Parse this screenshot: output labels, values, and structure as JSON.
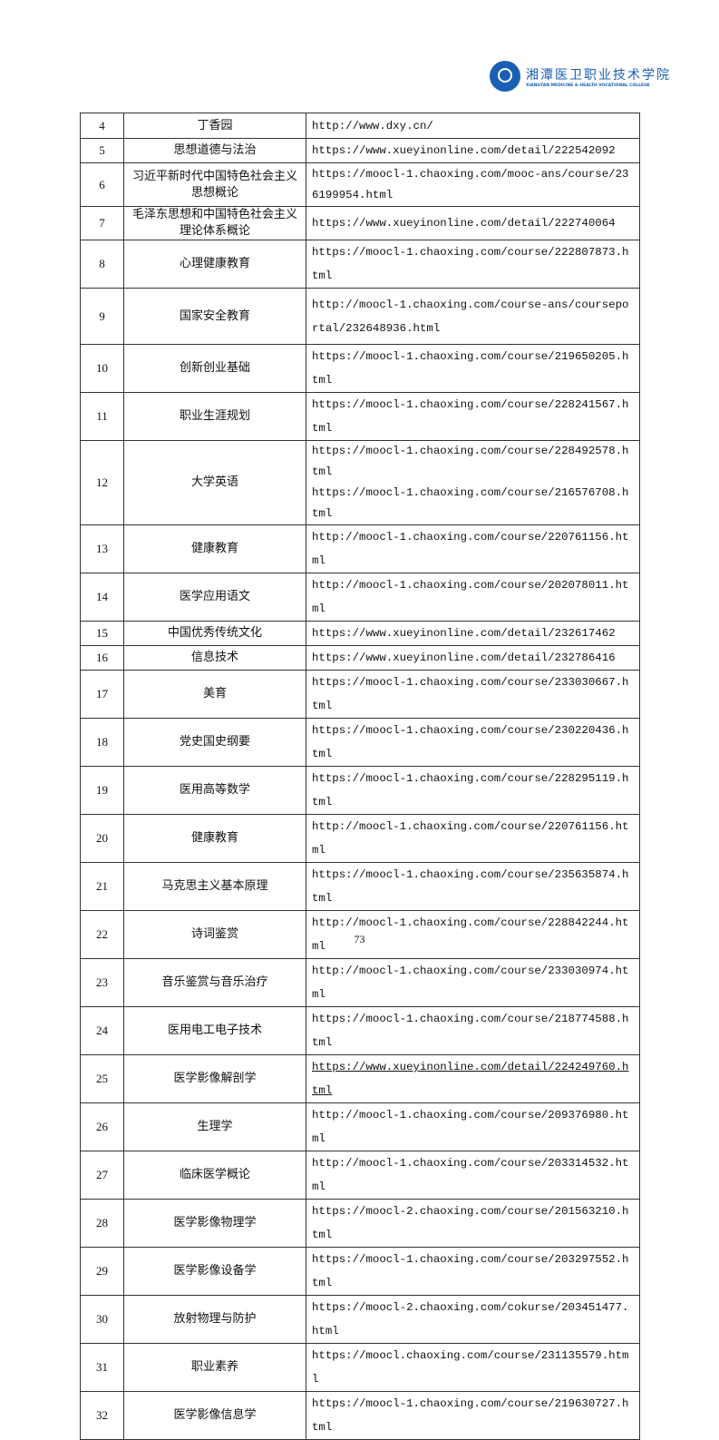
{
  "header": {
    "logo_cn": "湘潭医卫职业技术学院",
    "logo_en": "XIANGTAN MEDICINE & HEALTH VOCATIONAL COLLEGE"
  },
  "rows": [
    {
      "no": "4",
      "name": "丁香园",
      "urls": [
        "http://www.dxy.cn/"
      ]
    },
    {
      "no": "5",
      "name": "思想道德与法治",
      "urls": [
        "https://www.xueyinonline.com/detail/222542092"
      ]
    },
    {
      "no": "6",
      "name": "习近平新时代中国特色社会主义思想概论",
      "urls": [
        "https://moocl-1.chaoxing.com/mooc-ans/course/236199954.html"
      ]
    },
    {
      "no": "7",
      "name": "毛泽东思想和中国特色社会主义理论体系概论",
      "urls": [
        "https://www.xueyinonline.com/detail/222740064"
      ]
    },
    {
      "no": "8",
      "name": "心理健康教育",
      "urls": [
        "https://moocl-1.chaoxing.com/course/222807873.html"
      ]
    },
    {
      "no": "9",
      "name": "国家安全教育",
      "urls": [
        "http://moocl-1.chaoxing.com/course-ans/courseportal/232648936.html"
      ]
    },
    {
      "no": "10",
      "name": "创新创业基础",
      "urls": [
        "https://moocl-1.chaoxing.com/course/219650205.html"
      ]
    },
    {
      "no": "11",
      "name": "职业生涯规划",
      "urls": [
        "https://moocl-1.chaoxing.com/course/228241567.html"
      ]
    },
    {
      "no": "12",
      "name": "大学英语",
      "urls": [
        "https://moocl-1.chaoxing.com/course/228492578.html",
        "https://moocl-1.chaoxing.com/course/216576708.html"
      ]
    },
    {
      "no": "13",
      "name": "健康教育",
      "urls": [
        "http://moocl-1.chaoxing.com/course/220761156.html"
      ]
    },
    {
      "no": "14",
      "name": "医学应用语文",
      "urls": [
        "http://moocl-1.chaoxing.com/course/202078011.html"
      ]
    },
    {
      "no": "15",
      "name": "中国优秀传统文化",
      "urls": [
        "https://www.xueyinonline.com/detail/232617462"
      ]
    },
    {
      "no": "16",
      "name": "信息技术",
      "urls": [
        "https://www.xueyinonline.com/detail/232786416"
      ]
    },
    {
      "no": "17",
      "name": "美育",
      "urls": [
        "https://moocl-1.chaoxing.com/course/233030667.html"
      ]
    },
    {
      "no": "18",
      "name": "党史国史纲要",
      "urls": [
        "https://moocl-1.chaoxing.com/course/230220436.html"
      ]
    },
    {
      "no": "19",
      "name": "医用高等数学",
      "urls": [
        "https://moocl-1.chaoxing.com/course/228295119.html"
      ]
    },
    {
      "no": "20",
      "name": "健康教育",
      "urls": [
        "http://moocl-1.chaoxing.com/course/220761156.html"
      ]
    },
    {
      "no": "21",
      "name": "马克思主义基本原理",
      "urls": [
        "https://moocl-1.chaoxing.com/course/235635874.html"
      ]
    },
    {
      "no": "22",
      "name": "诗词鉴赏",
      "urls": [
        "http://moocl-1.chaoxing.com/course/228842244.html"
      ]
    },
    {
      "no": "23",
      "name": "音乐鉴赏与音乐治疗",
      "urls": [
        "http://moocl-1.chaoxing.com/course/233030974.html"
      ]
    },
    {
      "no": "24",
      "name": "医用电工电子技术",
      "urls": [
        "https://moocl-1.chaoxing.com/course/218774588.html"
      ]
    },
    {
      "no": "25",
      "name": "医学影像解剖学",
      "urls": [
        "https://www.xueyinonline.com/detail/224249760.html"
      ]
    },
    {
      "no": "26",
      "name": "生理学",
      "urls": [
        "http://moocl-1.chaoxing.com/course/209376980.html"
      ]
    },
    {
      "no": "27",
      "name": "临床医学概论",
      "urls": [
        "http://moocl-1.chaoxing.com/course/203314532.html"
      ]
    },
    {
      "no": "28",
      "name": "医学影像物理学",
      "urls": [
        "https://moocl-2.chaoxing.com/course/201563210.html"
      ]
    },
    {
      "no": "29",
      "name": "医学影像设备学",
      "urls": [
        "https://moocl-1.chaoxing.com/course/203297552.html"
      ]
    },
    {
      "no": "30",
      "name": "放射物理与防护",
      "urls": [
        "https://moocl-2.chaoxing.com/cokurse/203451477.html"
      ]
    },
    {
      "no": "31",
      "name": "职业素养",
      "urls": [
        "https://moocl.chaoxing.com/course/231135579.html"
      ]
    },
    {
      "no": "32",
      "name": "医学影像信息学",
      "urls": [
        "https://moocl-1.chaoxing.com/course/219630727.html"
      ]
    }
  ],
  "footer": {
    "page_number": "73"
  }
}
